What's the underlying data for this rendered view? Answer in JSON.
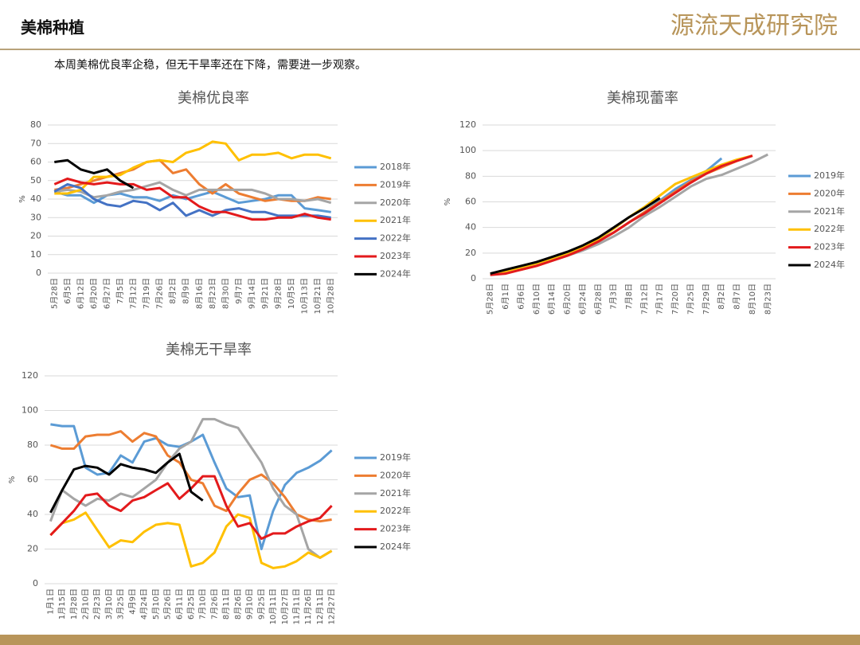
{
  "header": {
    "title": "美棉种植",
    "logo": "源流天成研究院",
    "note": "本周美棉优良率企稳，但无干旱率还在下降，需要进一步观察。"
  },
  "chart_data": [
    {
      "type": "line",
      "title": "美棉优良率",
      "ylabel": "%",
      "ylim": [
        0,
        80
      ],
      "yticks": [
        0,
        10,
        20,
        30,
        40,
        50,
        60,
        70,
        80
      ],
      "grid": true,
      "categories": [
        "5月28日",
        "6月5日",
        "6月12日",
        "6月20日",
        "6月27日",
        "7月5日",
        "7月12日",
        "7月19日",
        "7月26日",
        "8月2日",
        "8月9日",
        "8月16日",
        "8月23日",
        "8月30日",
        "9月7日",
        "9月14日",
        "9月21日",
        "9月28日",
        "10月5日",
        "10月13日",
        "10月21日",
        "10月28日"
      ],
      "series": [
        {
          "name": "2018年",
          "color": "#5b9bd5",
          "values": [
            44,
            42,
            42,
            38,
            42,
            43,
            41,
            41,
            39,
            42,
            40,
            42,
            44,
            41,
            38,
            39,
            40,
            42,
            42,
            35,
            34,
            33
          ]
        },
        {
          "name": "2019年",
          "color": "#ed7d31",
          "values": [
            45,
            46,
            48,
            50,
            52,
            54,
            56,
            60,
            61,
            54,
            56,
            48,
            43,
            48,
            43,
            41,
            39,
            40,
            39,
            39,
            41,
            40
          ]
        },
        {
          "name": "2020年",
          "color": "#a5a5a5",
          "values": [
            44,
            45,
            44,
            41,
            42,
            44,
            45,
            47,
            49,
            45,
            42,
            45,
            45,
            45,
            45,
            45,
            43,
            40,
            40,
            39,
            40,
            38
          ]
        },
        {
          "name": "2021年",
          "color": "#ffc000",
          "values": [
            43,
            43,
            45,
            52,
            52,
            53,
            57,
            60,
            61,
            60,
            65,
            67,
            71,
            70,
            61,
            64,
            64,
            65,
            62,
            64,
            64,
            62
          ]
        },
        {
          "name": "2022年",
          "color": "#4472c4",
          "values": [
            44,
            48,
            46,
            40,
            37,
            36,
            39,
            38,
            34,
            38,
            31,
            34,
            31,
            34,
            35,
            33,
            33,
            31,
            31,
            31,
            31,
            30
          ]
        },
        {
          "name": "2023年",
          "color": "#e31a1c",
          "values": [
            48,
            51,
            49,
            48,
            49,
            48,
            48,
            45,
            46,
            41,
            41,
            36,
            33,
            33,
            31,
            29,
            29,
            30,
            30,
            32,
            30,
            29
          ]
        },
        {
          "name": "2024年",
          "color": "#000000",
          "values": [
            60,
            61,
            56,
            54,
            56,
            50,
            46,
            null,
            null,
            null,
            null,
            null,
            null,
            null,
            null,
            null,
            null,
            null,
            null,
            null,
            null,
            null
          ]
        }
      ]
    },
    {
      "type": "line",
      "title": "美棉现蕾率",
      "ylabel": "%",
      "ylim": [
        0,
        120
      ],
      "yticks": [
        0,
        20,
        40,
        60,
        80,
        100,
        120
      ],
      "grid": true,
      "categories": [
        "5月28日",
        "6月1日",
        "6月6日",
        "6月10日",
        "6月14日",
        "6月20日",
        "6月24日",
        "6月28日",
        "7月3日",
        "7月8日",
        "7月12日",
        "7月17日",
        "7月20日",
        "7月25日",
        "7月29日",
        "8月2日",
        "8月7日",
        "8月10日",
        "8月23日"
      ],
      "series": [
        {
          "name": "2019年",
          "color": "#5b9bd5",
          "values": [
            3,
            5,
            8,
            11,
            15,
            19,
            24,
            30,
            36,
            44,
            52,
            61,
            70,
            77,
            84,
            94,
            null,
            null,
            null
          ]
        },
        {
          "name": "2020年",
          "color": "#ed7d31",
          "values": [
            3,
            5,
            7,
            10,
            14,
            18,
            23,
            29,
            36,
            44,
            52,
            60,
            68,
            76,
            82,
            87,
            92,
            96,
            null
          ]
        },
        {
          "name": "2021年",
          "color": "#a5a5a5",
          "values": [
            4,
            6,
            8,
            11,
            14,
            18,
            22,
            27,
            33,
            40,
            49,
            56,
            64,
            72,
            78,
            81,
            86,
            91,
            97
          ]
        },
        {
          "name": "2022年",
          "color": "#ffc000",
          "values": [
            4,
            6,
            9,
            12,
            16,
            20,
            25,
            31,
            39,
            48,
            56,
            65,
            74,
            79,
            84,
            89,
            93,
            96,
            null
          ]
        },
        {
          "name": "2023年",
          "color": "#e31a1c",
          "values": [
            3,
            4,
            7,
            10,
            14,
            18,
            23,
            29,
            36,
            44,
            51,
            59,
            67,
            75,
            82,
            88,
            92,
            96,
            null
          ]
        },
        {
          "name": "2024年",
          "color": "#000000",
          "values": [
            4,
            7,
            10,
            13,
            17,
            21,
            26,
            32,
            40,
            48,
            55,
            63,
            null,
            null,
            null,
            null,
            null,
            null,
            null
          ]
        }
      ]
    },
    {
      "type": "line",
      "title": "美棉无干旱率",
      "ylabel": "%",
      "ylim": [
        0,
        120
      ],
      "yticks": [
        0,
        20,
        40,
        60,
        80,
        100,
        120
      ],
      "grid": true,
      "categories": [
        "1月1日",
        "1月15日",
        "1月28日",
        "2月10日",
        "2月23日",
        "3月10日",
        "3月25日",
        "4月9日",
        "4月24日",
        "5月10日",
        "5月26日",
        "6月11日",
        "6月25日",
        "7月10日",
        "7月26日",
        "8月11日",
        "8月26日",
        "9月10日",
        "9月25日",
        "10月11日",
        "10月27日",
        "11月11日",
        "11月26日",
        "12月11日",
        "12月27日"
      ],
      "series": [
        {
          "name": "2019年",
          "color": "#5b9bd5",
          "values": [
            92,
            91,
            91,
            67,
            63,
            64,
            74,
            70,
            82,
            84,
            80,
            79,
            82,
            86,
            70,
            55,
            50,
            51,
            20,
            42,
            57,
            64,
            67,
            71,
            77
          ]
        },
        {
          "name": "2020年",
          "color": "#ed7d31",
          "values": [
            80,
            78,
            78,
            85,
            86,
            86,
            88,
            82,
            87,
            85,
            74,
            70,
            60,
            58,
            45,
            42,
            52,
            60,
            63,
            58,
            50,
            40,
            37,
            36,
            37
          ]
        },
        {
          "name": "2021年",
          "color": "#a5a5a5",
          "values": [
            36,
            54,
            49,
            45,
            49,
            48,
            52,
            50,
            55,
            60,
            70,
            78,
            82,
            95,
            95,
            92,
            90,
            80,
            70,
            55,
            45,
            40,
            20,
            15,
            19
          ]
        },
        {
          "name": "2022年",
          "color": "#ffc000",
          "values": [
            28,
            35,
            37,
            41,
            31,
            21,
            25,
            24,
            30,
            34,
            35,
            34,
            10,
            12,
            18,
            33,
            40,
            38,
            12,
            9,
            10,
            13,
            18,
            15,
            19
          ]
        },
        {
          "name": "2023年",
          "color": "#e31a1c",
          "values": [
            28,
            35,
            42,
            51,
            52,
            45,
            42,
            48,
            50,
            54,
            58,
            49,
            55,
            62,
            62,
            45,
            33,
            35,
            26,
            29,
            29,
            33,
            36,
            38,
            45
          ]
        },
        {
          "name": "2024年",
          "color": "#000000",
          "values": [
            41,
            54,
            66,
            68,
            67,
            63,
            69,
            67,
            66,
            64,
            70,
            75,
            53,
            48,
            null,
            null,
            null,
            null,
            null,
            null,
            null,
            null,
            null,
            null,
            null
          ]
        }
      ]
    }
  ]
}
